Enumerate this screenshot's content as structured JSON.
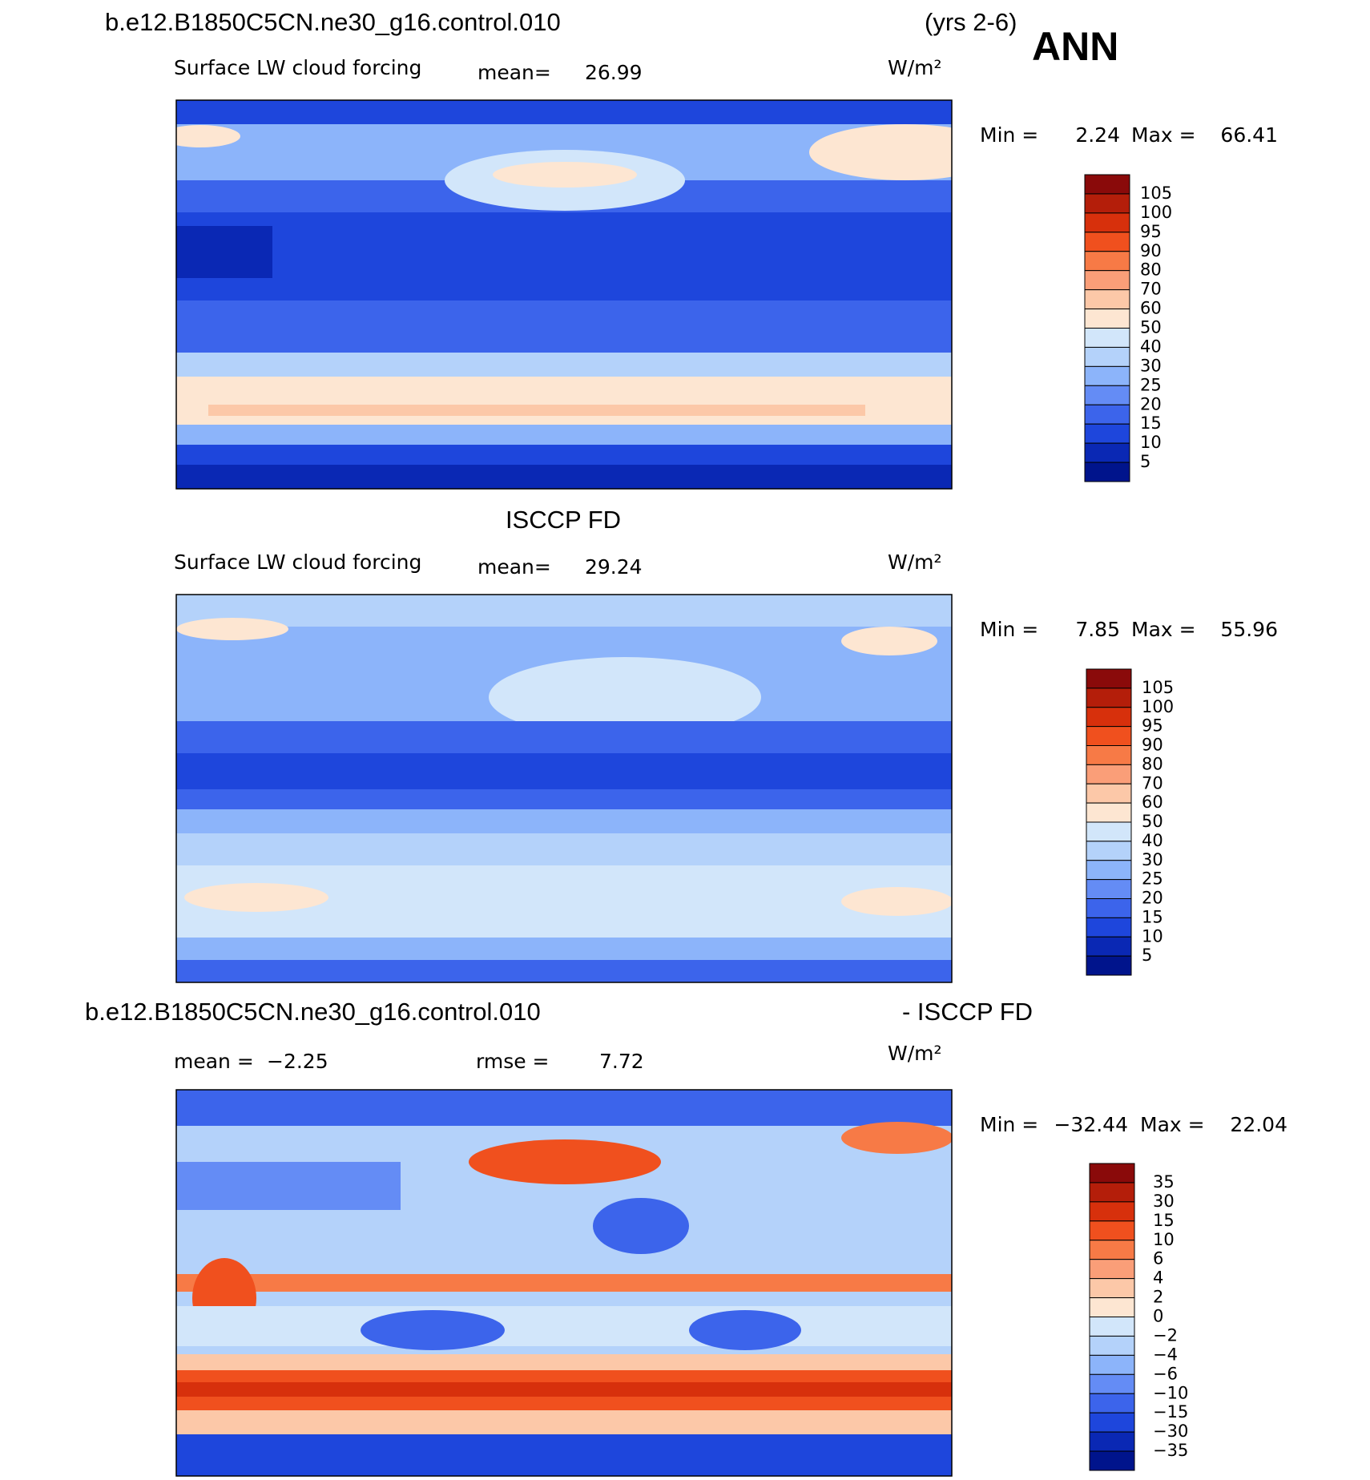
{
  "header": {
    "case": "b.e12.B1850C5CN.ne30_g16.control.010",
    "years": "(yrs 2-6)",
    "season": "ANN"
  },
  "colormap": [
    "#8a0a0a",
    "#b41e0a",
    "#d7300c",
    "#f0501e",
    "#f77a46",
    "#fa9e78",
    "#fcc8a8",
    "#fde6d2",
    "#d2e6fa",
    "#b4d2fa",
    "#8cb4fa",
    "#648cf5",
    "#3c64eb",
    "#1e46dc",
    "#0a28b4",
    "#00148c"
  ],
  "panels": [
    {
      "variable": "Surface LW cloud forcing",
      "mean_label": "mean=",
      "mean": "26.99",
      "units": "W/m²",
      "min_label": "Min =",
      "min": "2.24",
      "max_label": "Max =",
      "max": "66.41",
      "colorbar": [
        "105",
        "100",
        "95",
        "90",
        "80",
        "70",
        "60",
        "50",
        "40",
        "30",
        "25",
        "20",
        "15",
        "10",
        "5"
      ]
    },
    {
      "title": "ISCCP FD",
      "variable": "Surface LW cloud forcing",
      "mean_label": "mean=",
      "mean": "29.24",
      "units": "W/m²",
      "min_label": "Min =",
      "min": "7.85",
      "max_label": "Max =",
      "max": "55.96",
      "colorbar": [
        "105",
        "100",
        "95",
        "90",
        "80",
        "70",
        "60",
        "50",
        "40",
        "30",
        "25",
        "20",
        "15",
        "10",
        "5"
      ]
    },
    {
      "title": "b.e12.B1850C5CN.ne30_g16.control.010",
      "title_right": "- ISCCP FD",
      "mean_label": "mean =",
      "mean": "−2.25",
      "rmse_label": "rmse =",
      "rmse": "7.72",
      "units": "W/m²",
      "min_label": "Min =",
      "min": "−32.44",
      "max_label": "Max =",
      "max": "22.04",
      "colorbar": [
        "35",
        "30",
        "15",
        "10",
        "6",
        "4",
        "2",
        "0",
        "−2",
        "−4",
        "−6",
        "−10",
        "−15",
        "−30",
        "−35"
      ]
    }
  ]
}
